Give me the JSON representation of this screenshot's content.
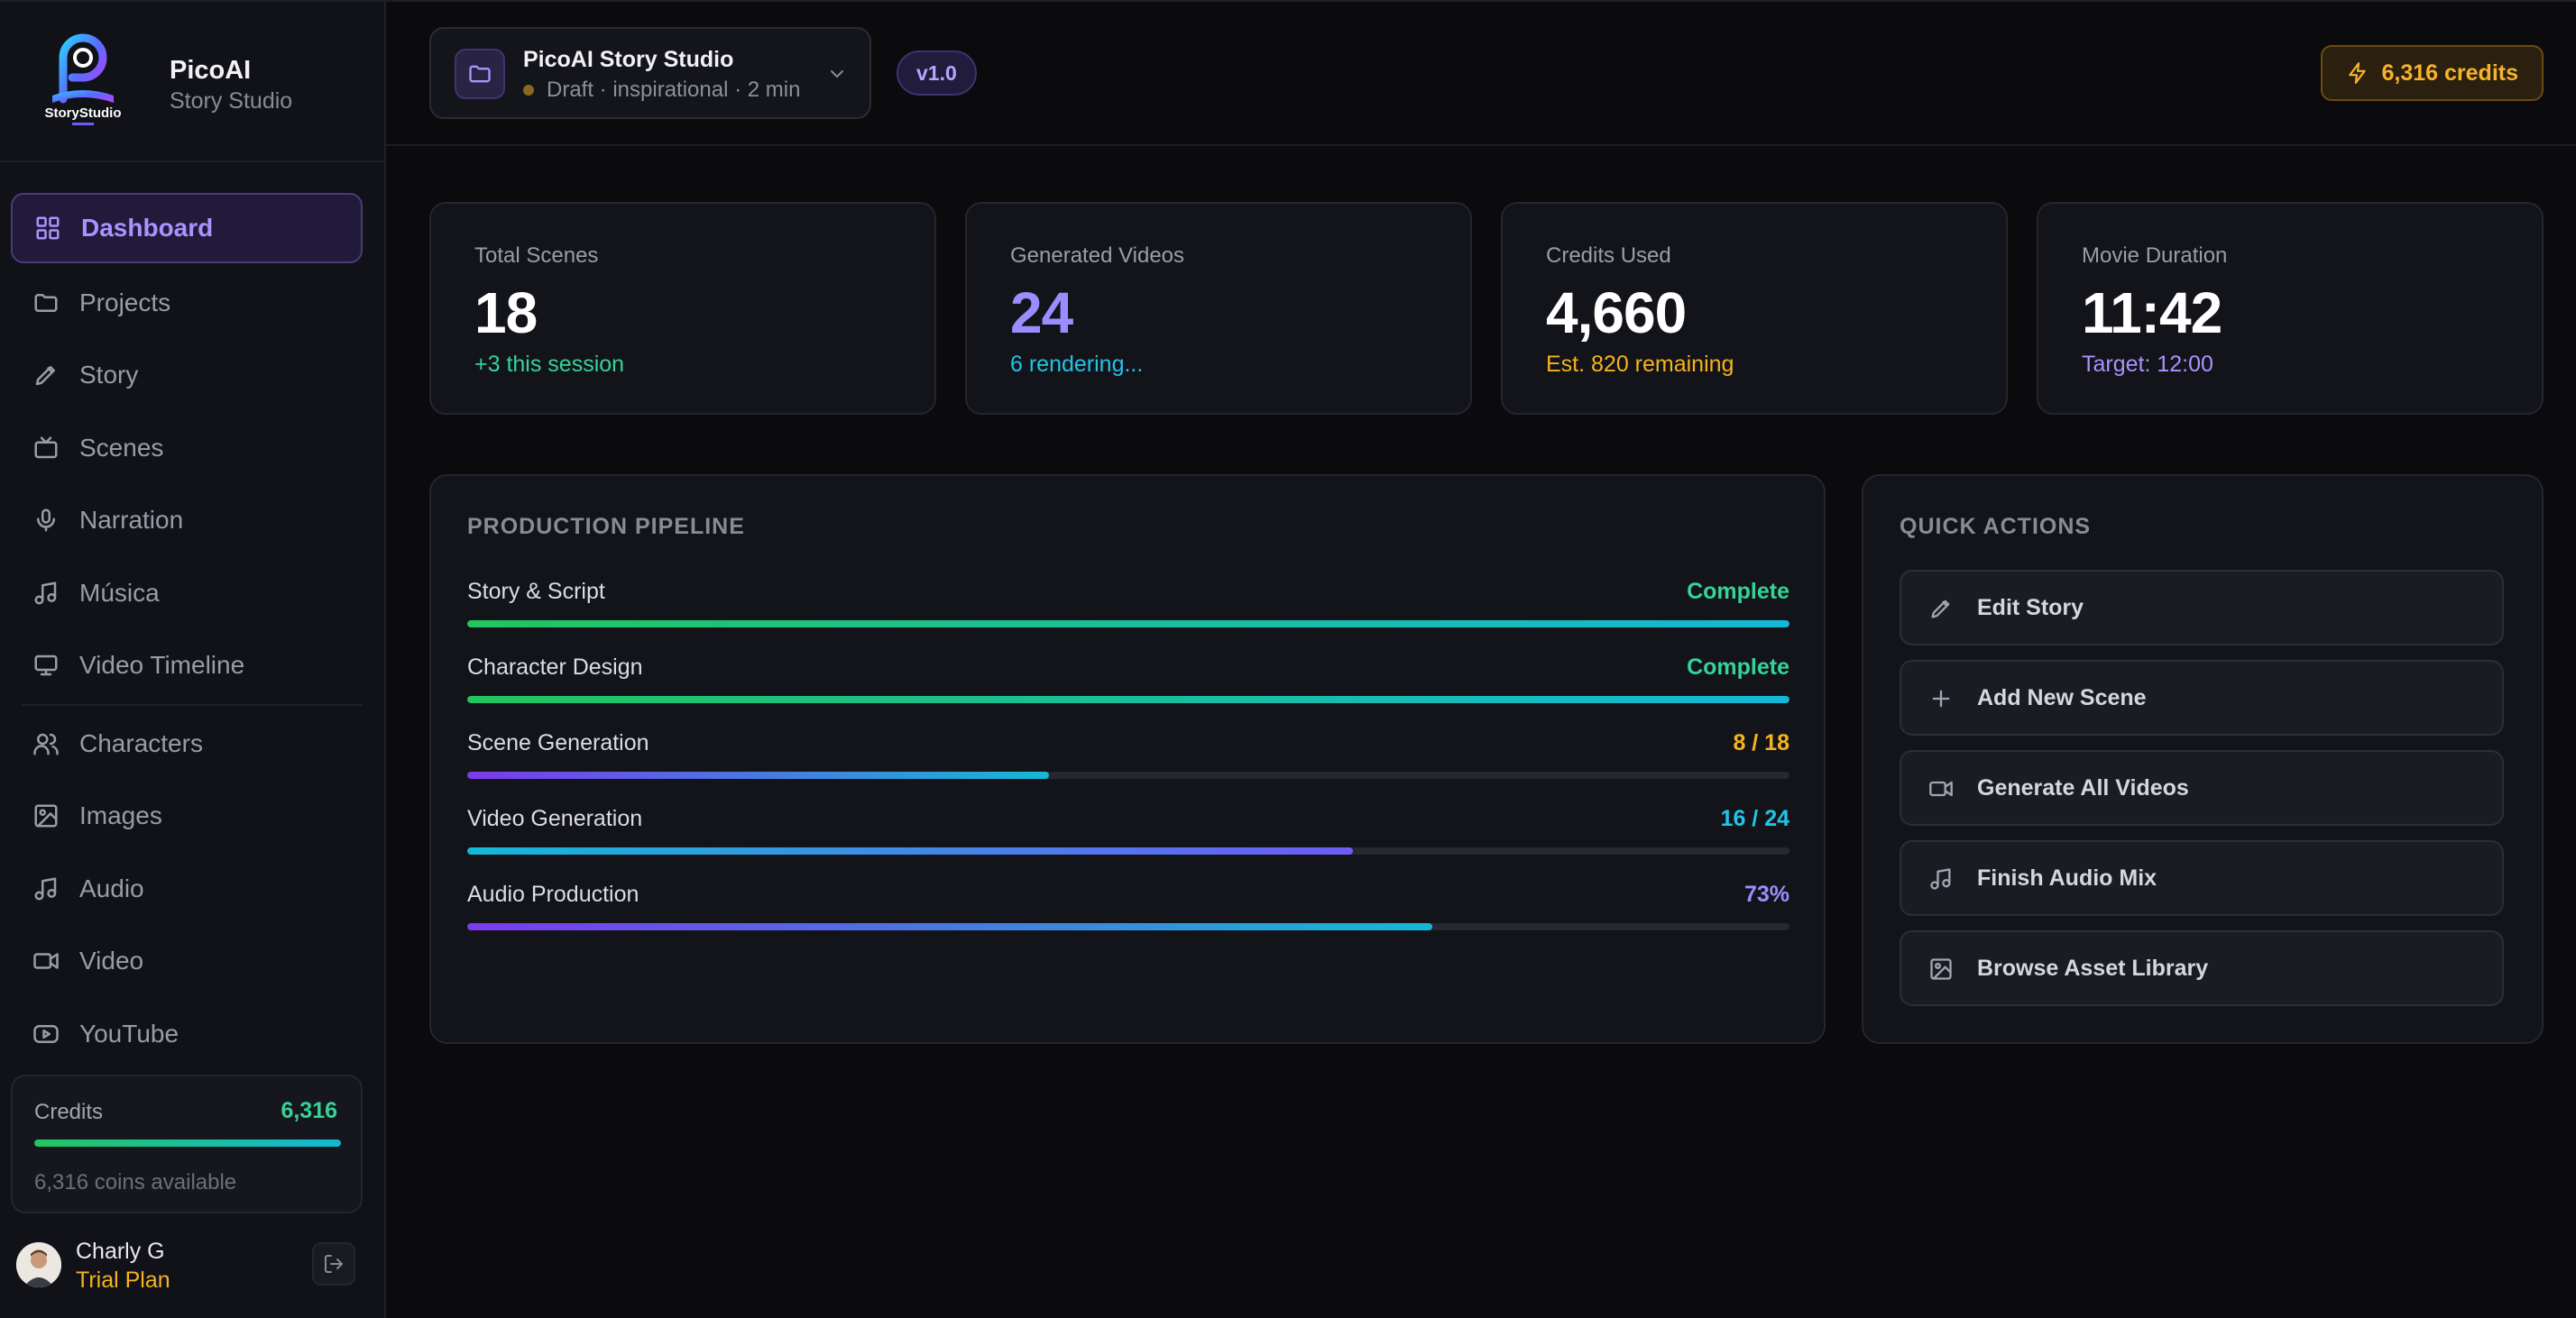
{
  "brand": {
    "name": "PicoAI",
    "subtitle": "Story Studio",
    "logo_text": "StoryStudio"
  },
  "sidebar": {
    "items": [
      {
        "label": "Dashboard",
        "icon": "grid-icon",
        "active": true
      },
      {
        "label": "Projects",
        "icon": "folder-icon"
      },
      {
        "label": "Story",
        "icon": "pen-icon"
      },
      {
        "label": "Scenes",
        "icon": "tv-icon"
      },
      {
        "label": "Narration",
        "icon": "mic-icon"
      },
      {
        "label": "Música",
        "icon": "music-icon"
      },
      {
        "label": "Video Timeline",
        "icon": "monitor-icon"
      },
      {
        "label": "Characters",
        "icon": "users-icon"
      },
      {
        "label": "Images",
        "icon": "image-icon"
      },
      {
        "label": "Audio",
        "icon": "music-icon"
      },
      {
        "label": "Video",
        "icon": "video-icon"
      },
      {
        "label": "YouTube",
        "icon": "youtube-icon"
      }
    ],
    "credits": {
      "label": "Credits",
      "value": "6,316",
      "note": "6,316 coins available",
      "fill": 1.0
    },
    "user": {
      "name": "Charly G",
      "plan": "Trial Plan"
    }
  },
  "header": {
    "project_title": "PicoAI Story Studio",
    "project_meta": "Draft · inspirational · 2 min",
    "version": "v1.0",
    "credits": "6,316 credits"
  },
  "stats": [
    {
      "label": "Total Scenes",
      "value": "18",
      "note": "+3 this session",
      "value_color": "#ffffff",
      "note_color": "#34d399"
    },
    {
      "label": "Generated Videos",
      "value": "24",
      "note": "6 rendering...",
      "value_color": "#9d8cff",
      "note_color": "#22c4e6"
    },
    {
      "label": "Credits Used",
      "value": "4,660",
      "note": "Est. 820 remaining",
      "value_color": "#ffffff",
      "note_color": "#f5b31e"
    },
    {
      "label": "Movie Duration",
      "value": "11:42",
      "note": "Target: 12:00",
      "value_color": "#ffffff",
      "note_color": "#a893ff"
    }
  ],
  "pipeline": {
    "title": "PRODUCTION PIPELINE",
    "rows": [
      {
        "label": "Story & Script",
        "status": "Complete",
        "progress": 1.0,
        "status_color": "#34d399",
        "gradient": [
          "#22c55e",
          "#14b8d6"
        ]
      },
      {
        "label": "Character Design",
        "status": "Complete",
        "progress": 1.0,
        "status_color": "#34d399",
        "gradient": [
          "#22c55e",
          "#14b8d6"
        ]
      },
      {
        "label": "Scene Generation",
        "status": "8 / 18",
        "progress": 0.44,
        "status_color": "#f5b31e",
        "gradient": [
          "#7c3aed",
          "#14b8d6"
        ]
      },
      {
        "label": "Video Generation",
        "status": "16 / 24",
        "progress": 0.67,
        "status_color": "#22c4e6",
        "gradient": [
          "#14b8d6",
          "#6d5cf6"
        ]
      },
      {
        "label": "Audio Production",
        "status": "73%",
        "progress": 0.73,
        "status_color": "#9d8cff",
        "gradient": [
          "#7c3aed",
          "#14b8d6"
        ]
      }
    ]
  },
  "quick_actions": {
    "title": "QUICK ACTIONS",
    "items": [
      {
        "label": "Edit Story",
        "icon": "pen-icon"
      },
      {
        "label": "Add New Scene",
        "icon": "plus-icon"
      },
      {
        "label": "Generate All Videos",
        "icon": "video-icon"
      },
      {
        "label": "Finish Audio Mix",
        "icon": "music-icon"
      },
      {
        "label": "Browse Asset Library",
        "icon": "image-icon"
      }
    ]
  }
}
